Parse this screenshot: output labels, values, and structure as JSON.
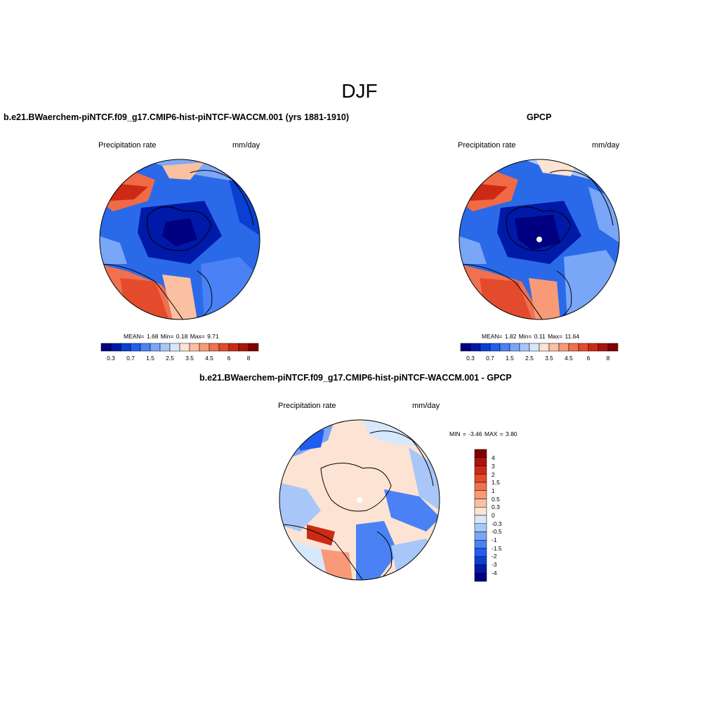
{
  "main_title": "DJF",
  "panels": [
    {
      "title": "b.e21.BWaerchem-piNTCF.f09_g17.CMIP6-hist-piNTCF-WACCM.001 (yrs 1881-1910)",
      "left_label": "Precipitation rate",
      "right_label": "mm/day",
      "stats": "MEAN=   1.68  Min=   0.18  Max=   9.71"
    },
    {
      "title": "GPCP",
      "left_label": "Precipitation rate",
      "right_label": "mm/day",
      "stats": "MEAN=   1.82  Min=   0.11  Max=  11.64"
    },
    {
      "title": "b.e21.BWaerchem-piNTCF.f09_g17.CMIP6-hist-piNTCF-WACCM.001 - GPCP",
      "left_label": "Precipitation rate",
      "right_label": "mm/day",
      "stats": "MIN =  -3.46 MAX =   3.80"
    }
  ],
  "horizontal_colorbar": {
    "colors": [
      "#000080",
      "#0019a8",
      "#0a3fd1",
      "#1f5ef0",
      "#4a82f5",
      "#7aa6f7",
      "#a8c7f8",
      "#d8e8fb",
      "#fde3d3",
      "#fbbfa2",
      "#f89a77",
      "#f0714f",
      "#e44a2c",
      "#cc2a14",
      "#a8150a",
      "#800000"
    ],
    "labels": [
      "0.3",
      "0.7",
      "1.5",
      "2.5",
      "3.5",
      "4.5",
      "6",
      "8"
    ]
  },
  "vertical_colorbar": {
    "colors": [
      "#800000",
      "#a8150a",
      "#cc2a14",
      "#e44a2c",
      "#f0714f",
      "#f89a77",
      "#fbbfa2",
      "#fde3d3",
      "#d8e8fb",
      "#a8c7f8",
      "#7aa6f7",
      "#4a82f5",
      "#1f5ef0",
      "#0a3fd1",
      "#0019a8",
      "#000080"
    ],
    "labels": [
      "4",
      "3",
      "2",
      "1.5",
      "1",
      "0.5",
      "0.3",
      "0",
      "-0.3",
      "-0.5",
      "-1",
      "-1.5",
      "-2",
      "-3",
      "-4"
    ]
  }
}
